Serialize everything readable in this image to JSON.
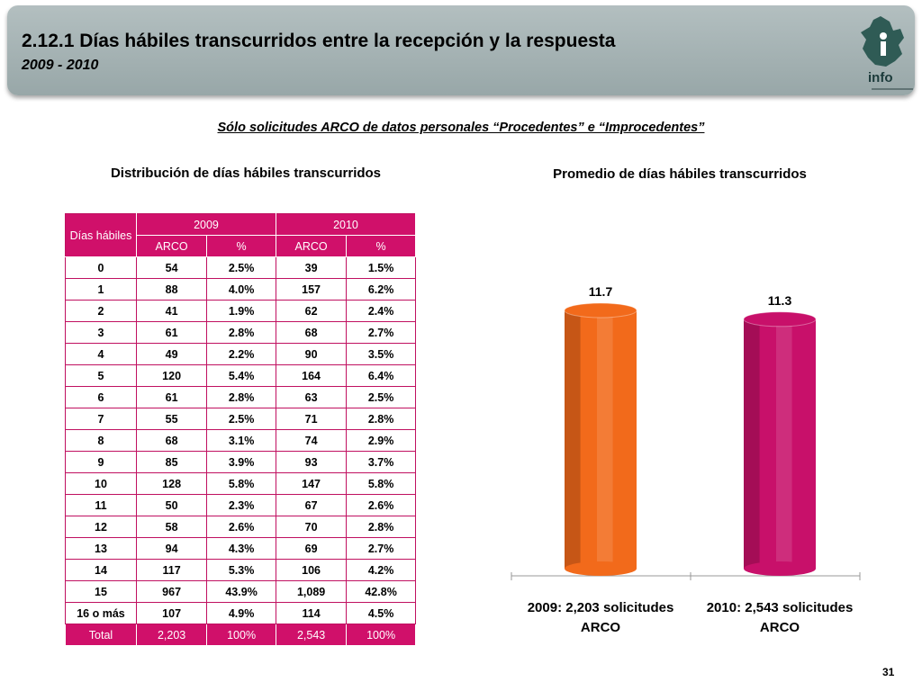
{
  "header": {
    "title": "2.12.1 Días hábiles transcurridos entre la recepción y la respuesta",
    "subtitle": "2009 - 2010",
    "logo_text": "info"
  },
  "section_title": "Sólo solicitudes ARCO de datos personales “Procedentes” e “Improcedentes”",
  "left_heading": "Distribución de días hábiles transcurridos",
  "right_heading": "Promedio de días hábiles transcurridos",
  "table": {
    "corner_label": "Días hábiles",
    "year_headers": [
      "2009",
      "2010"
    ],
    "sub_headers": [
      "ARCO",
      "%",
      "ARCO",
      "%"
    ],
    "rows": [
      [
        "0",
        "54",
        "2.5%",
        "39",
        "1.5%"
      ],
      [
        "1",
        "88",
        "4.0%",
        "157",
        "6.2%"
      ],
      [
        "2",
        "41",
        "1.9%",
        "62",
        "2.4%"
      ],
      [
        "3",
        "61",
        "2.8%",
        "68",
        "2.7%"
      ],
      [
        "4",
        "49",
        "2.2%",
        "90",
        "3.5%"
      ],
      [
        "5",
        "120",
        "5.4%",
        "164",
        "6.4%"
      ],
      [
        "6",
        "61",
        "2.8%",
        "63",
        "2.5%"
      ],
      [
        "7",
        "55",
        "2.5%",
        "71",
        "2.8%"
      ],
      [
        "8",
        "68",
        "3.1%",
        "74",
        "2.9%"
      ],
      [
        "9",
        "85",
        "3.9%",
        "93",
        "3.7%"
      ],
      [
        "10",
        "128",
        "5.8%",
        "147",
        "5.8%"
      ],
      [
        "11",
        "50",
        "2.3%",
        "67",
        "2.6%"
      ],
      [
        "12",
        "58",
        "2.6%",
        "70",
        "2.8%"
      ],
      [
        "13",
        "94",
        "4.3%",
        "69",
        "2.7%"
      ],
      [
        "14",
        "117",
        "5.3%",
        "106",
        "4.2%"
      ],
      [
        "15",
        "967",
        "43.9%",
        "1,089",
        "42.8%"
      ],
      [
        "16 o más",
        "107",
        "4.9%",
        "114",
        "4.5%"
      ]
    ],
    "total": [
      "Total",
      "2,203",
      "100%",
      "2,543",
      "100%"
    ]
  },
  "chart_data": {
    "type": "bar",
    "categories": [
      "2009: 2,203 solicitudes ARCO",
      "2010: 2,543 solicitudes ARCO"
    ],
    "category_lines": [
      [
        "2009: 2,203 solicitudes",
        "ARCO"
      ],
      [
        "2010: 2,543 solicitudes",
        "ARCO"
      ]
    ],
    "values": [
      11.7,
      11.3
    ],
    "value_labels": [
      "11.7",
      "11.3"
    ],
    "colors": [
      "#f26a1b",
      "#c8106a"
    ],
    "title": "Promedio de días hábiles transcurridos",
    "ylim": [
      0,
      11.7
    ],
    "grid": false
  },
  "page_number": "31"
}
